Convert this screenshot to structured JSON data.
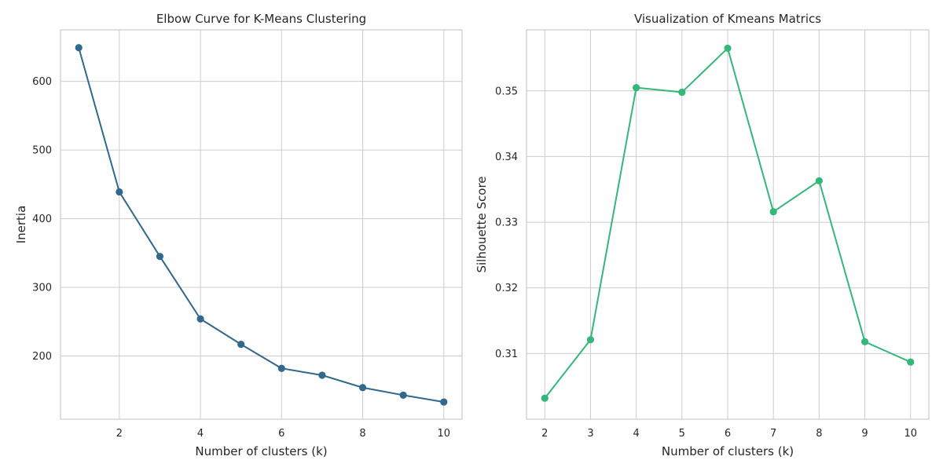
{
  "chart_data": [
    {
      "type": "line",
      "title": "Elbow Curve for K-Means Clustering",
      "xlabel": "Number of clusters (k)",
      "ylabel": "Inertia",
      "x": [
        1,
        2,
        3,
        4,
        5,
        6,
        7,
        8,
        9,
        10
      ],
      "series": [
        {
          "values": [
            649,
            439,
            345,
            254,
            217,
            182,
            172,
            154,
            143,
            133
          ],
          "color": "#31688e",
          "marker": "circle"
        }
      ],
      "xlim": [
        0.55,
        10.45
      ],
      "ylim": [
        108,
        675
      ],
      "xticks": [
        2,
        4,
        6,
        8,
        10
      ],
      "yticks": [
        200,
        300,
        400,
        500,
        600
      ],
      "grid": true,
      "legend": "none"
    },
    {
      "type": "line",
      "title": "Visualization of Kmeans Matrics",
      "xlabel": "Number of clusters (k)",
      "ylabel": "Silhouette Score",
      "x": [
        2,
        3,
        4,
        5,
        6,
        7,
        8,
        9,
        10
      ],
      "series": [
        {
          "values": [
            0.3032,
            0.3121,
            0.3505,
            0.3498,
            0.3565,
            0.3316,
            0.3363,
            0.3118,
            0.3087
          ],
          "color": "#35b779",
          "marker": "circle"
        }
      ],
      "xlim": [
        1.6,
        10.4
      ],
      "ylim": [
        0.3,
        0.3593
      ],
      "xticks": [
        2,
        3,
        4,
        5,
        6,
        7,
        8,
        9,
        10
      ],
      "yticks": [
        0.31,
        0.32,
        0.33,
        0.34,
        0.35
      ],
      "grid": true,
      "legend": "none"
    }
  ]
}
